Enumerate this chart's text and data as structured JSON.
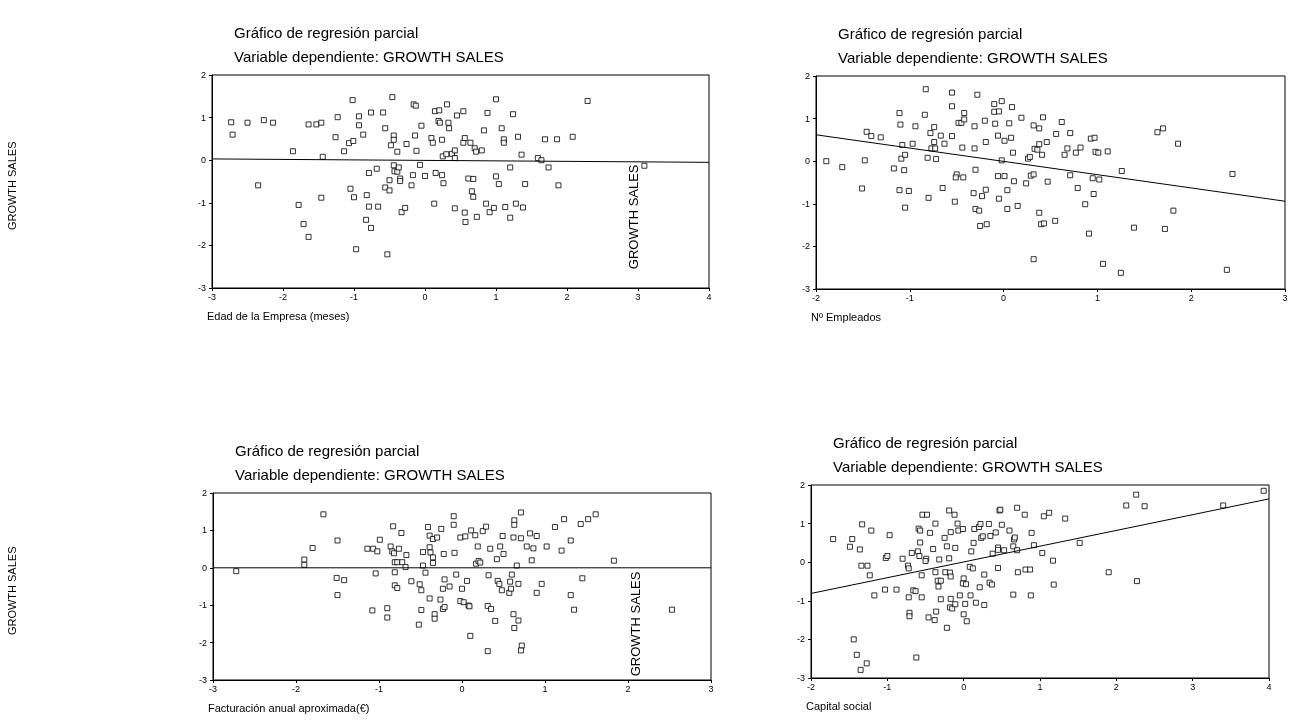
{
  "chart_data": [
    {
      "type": "scatter",
      "title": "Gráfico de regresión parcial",
      "subtitle": "Variable dependiente: GROWTH SALES",
      "xlabel": "Edad de la Empresa (meses)",
      "ylabel": "GROWTH SALES",
      "annotations": [
        "GROWTH SALES"
      ],
      "xlim": [
        -3,
        4
      ],
      "ylim": [
        -3,
        2
      ],
      "xticks": [
        -3,
        -2,
        -1,
        0,
        1,
        2,
        3,
        4
      ],
      "yticks": [
        -3,
        -2,
        -1,
        0,
        1,
        2
      ],
      "series": [
        {
          "marker": "square",
          "color": "#000000",
          "x": [
            -2.73,
            -2.71,
            -2.5,
            -2.27,
            -2.14,
            -2.35,
            -1.86,
            -1.78,
            -1.71,
            -1.64,
            -1.64,
            -1.53,
            -1.46,
            -1.44,
            -1.46,
            -1.26,
            -1.23,
            -1.14,
            -1.07,
            -1.05,
            -1.02,
            -1.01,
            -1.0,
            -0.97,
            -0.93,
            -0.93,
            -0.87,
            -0.83,
            -0.82,
            -0.79,
            -0.79,
            -0.76,
            -0.76,
            -0.68,
            -0.66,
            -0.59,
            -0.56,
            -0.56,
            -0.53,
            -0.5,
            -0.5,
            -0.48,
            -0.46,
            -0.44,
            -0.44,
            -0.44,
            -0.43,
            -0.39,
            -0.39,
            -0.37,
            -0.35,
            -0.35,
            -0.33,
            -0.28,
            -0.26,
            -0.19,
            -0.17,
            -0.16,
            -0.13,
            -0.14,
            -0.12,
            -0.07,
            -0.05,
            0.0,
            0.09,
            0.11,
            0.13,
            0.14,
            0.15,
            0.2,
            0.19,
            0.21,
            0.24,
            0.24,
            0.25,
            0.26,
            0.3,
            0.31,
            0.33,
            0.34,
            0.38,
            0.42,
            0.42,
            0.42,
            0.45,
            0.54,
            0.54,
            0.56,
            0.57,
            0.56,
            0.61,
            0.64,
            0.66,
            0.68,
            0.68,
            0.7,
            0.72,
            0.73,
            0.8,
            0.83,
            0.86,
            0.88,
            0.91,
            0.97,
            1.0,
            1.0,
            1.04,
            1.08,
            1.11,
            1.11,
            1.13,
            1.2,
            1.2,
            1.24,
            1.28,
            1.31,
            1.36,
            1.38,
            1.41,
            1.59,
            1.64,
            1.69,
            1.74,
            1.86,
            1.88,
            2.08,
            2.29,
            3.09
          ],
          "values": [
            0.89,
            0.6,
            0.88,
            0.94,
            0.88,
            -0.59,
            0.21,
            -1.05,
            -1.5,
            -1.8,
            0.84,
            0.84,
            0.88,
            0.08,
            -0.88,
            0.54,
            1.01,
            0.21,
            0.4,
            -0.67,
            1.41,
            0.45,
            -0.87,
            -2.09,
            1.03,
            0.82,
            0.6,
            -1.4,
            -0.82,
            -0.3,
            -1.09,
            -1.59,
            1.12,
            -0.2,
            -1.09,
            1.12,
            -0.64,
            0.75,
            -2.21,
            -0.71,
            -0.47,
            0.35,
            1.48,
            0.58,
            0.48,
            -0.12,
            -0.26,
            0.2,
            -0.27,
            -0.17,
            -0.43,
            -0.49,
            -1.22,
            -1.12,
            0.38,
            -0.59,
            -0.35,
            1.31,
            1.28,
            0.58,
            0.22,
            -0.11,
            0.81,
            -0.37,
            0.52,
            0.41,
            -1.02,
            1.15,
            -0.3,
            1.17,
            0.92,
            0.88,
            -0.35,
            0.48,
            0.09,
            -0.54,
            0.14,
            1.31,
            0.88,
            0.75,
            0.15,
            -1.13,
            0.23,
            0.05,
            1.05,
            1.15,
            0.41,
            -1.23,
            -1.45,
            0.52,
            -0.43,
            0.41,
            -0.73,
            -0.86,
            -0.44,
            0.28,
            0.2,
            -1.33,
            0.23,
            0.7,
            -1.02,
            1.11,
            -1.22,
            -1.12,
            1.43,
            -0.38,
            -0.56,
            0.75,
            0.49,
            0.41,
            -1.1,
            -0.17,
            -1.35,
            1.08,
            -1.02,
            0.55,
            0.13,
            -1.11,
            -0.56,
            0.05,
            0.0,
            0.49,
            -0.17,
            0.49,
            -0.59,
            0.55,
            1.39,
            -0.13
          ]
        },
        {
          "type": "line",
          "color": "#000000",
          "x": [
            -3,
            4
          ],
          "values": [
            0.03,
            -0.05
          ]
        }
      ]
    },
    {
      "type": "scatter",
      "title": "Gráfico de regresión parcial",
      "subtitle": "Variable dependiente: GROWTH SALES",
      "xlabel": "Nº Empleados",
      "xlim": [
        -2,
        3
      ],
      "ylim": [
        -3,
        2
      ],
      "xticks": [
        -2,
        -1,
        0,
        1,
        2,
        3
      ],
      "yticks": [
        -3,
        -2,
        -1,
        0,
        1,
        2
      ],
      "series": [
        {
          "marker": "square",
          "color": "#000000",
          "x": [
            -1.89,
            -1.72,
            -1.51,
            -1.48,
            -1.46,
            -1.41,
            -1.31,
            -1.17,
            -1.11,
            -1.1,
            -1.08,
            -1.11,
            -1.09,
            -1.06,
            -1.05,
            -1.05,
            -1.01,
            -0.97,
            -0.94,
            -0.84,
            -0.83,
            -0.81,
            -0.8,
            -0.78,
            -0.77,
            -0.74,
            -0.74,
            -0.73,
            -0.72,
            -0.67,
            -0.65,
            -0.63,
            -0.55,
            -0.55,
            -0.55,
            -0.52,
            -0.5,
            -0.51,
            -0.48,
            -0.45,
            -0.44,
            -0.43,
            -0.42,
            -0.42,
            -0.32,
            -0.31,
            -0.31,
            -0.3,
            -0.3,
            -0.28,
            -0.26,
            -0.25,
            -0.23,
            -0.2,
            -0.19,
            -0.19,
            -0.18,
            -0.1,
            -0.1,
            -0.09,
            -0.06,
            -0.06,
            -0.05,
            -0.05,
            -0.02,
            -0.02,
            0.01,
            0.01,
            0.04,
            0.04,
            0.06,
            0.08,
            0.09,
            0.1,
            0.11,
            0.15,
            0.19,
            0.24,
            0.26,
            0.28,
            0.29,
            0.32,
            0.32,
            0.32,
            0.33,
            0.36,
            0.38,
            0.38,
            0.38,
            0.4,
            0.41,
            0.42,
            0.43,
            0.46,
            0.47,
            0.55,
            0.56,
            0.62,
            0.65,
            0.68,
            0.71,
            0.71,
            0.77,
            0.79,
            0.82,
            0.87,
            0.91,
            0.93,
            0.95,
            0.96,
            0.97,
            0.98,
            1.02,
            1.01,
            1.06,
            1.11,
            1.26,
            1.25,
            1.39,
            1.64,
            1.7,
            1.72,
            1.81,
            1.86,
            2.38,
            2.44
          ],
          "values": [
            0.0,
            -0.14,
            -0.64,
            0.02,
            0.69,
            0.59,
            0.56,
            -0.17,
            1.13,
            0.86,
            0.38,
            -0.68,
            0.06,
            -0.21,
            0.15,
            -1.09,
            -0.7,
            0.41,
            0.82,
            1.09,
            1.69,
            0.08,
            -0.86,
            0.66,
            0.3,
            0.45,
            0.8,
            0.3,
            0.05,
            0.6,
            -0.63,
            0.41,
            1.61,
            1.29,
            0.59,
            -0.95,
            -0.31,
            -0.38,
            0.9,
            0.9,
            0.32,
            -0.38,
            1.13,
            0.98,
            -0.75,
            0.82,
            0.3,
            -0.2,
            -1.12,
            1.56,
            -1.16,
            -1.52,
            -0.82,
            0.95,
            -0.67,
            0.45,
            -1.48,
            1.34,
            1.16,
            0.88,
            0.6,
            -0.35,
            -0.88,
            1.17,
            1.41,
            0.02,
            -0.35,
            0.48,
            -0.68,
            -1.12,
            0.89,
            0.55,
            1.27,
            0.2,
            -0.47,
            -1.05,
            1.02,
            -0.52,
            0.06,
            0.1,
            -0.34,
            -0.31,
            0.84,
            -2.3,
            0.29,
            0.27,
            0.77,
            0.4,
            -1.21,
            -1.48,
            0.15,
            1.03,
            -1.46,
            0.45,
            -0.48,
            -1.4,
            0.64,
            0.92,
            0.15,
            0.3,
            -0.33,
            0.66,
            0.2,
            -0.63,
            0.32,
            -1.01,
            -1.7,
            0.53,
            -0.4,
            -0.77,
            0.55,
            0.22,
            -0.43,
            0.2,
            -2.41,
            0.23,
            -0.23,
            -2.62,
            -1.56,
            0.68,
            0.77,
            -1.59,
            -1.16,
            0.41,
            -2.55,
            -0.3
          ]
        },
        {
          "type": "line",
          "color": "#000000",
          "x": [
            -2,
            3
          ],
          "values": [
            0.62,
            -0.94
          ]
        }
      ]
    },
    {
      "type": "scatter",
      "title": "Gráfico de regresión parcial",
      "subtitle": "Variable dependiente: GROWTH SALES",
      "xlabel": "Facturación anual aproximada(€)",
      "ylabel": "GROWTH SALES",
      "annotations": [
        "GROWTH SALES"
      ],
      "xlim": [
        -3,
        3
      ],
      "ylim": [
        -3,
        2
      ],
      "xticks": [
        -3,
        -2,
        -1,
        0,
        1,
        2,
        3
      ],
      "yticks": [
        -3,
        -2,
        -1,
        0,
        1,
        2
      ],
      "series": [
        {
          "marker": "square",
          "color": "#000000",
          "x": [
            -2.72,
            -1.9,
            -1.9,
            -1.8,
            -1.67,
            -1.51,
            -1.5,
            -1.5,
            -1.42,
            -1.14,
            -1.07,
            -1.04,
            -1.02,
            -1.08,
            -0.99,
            -0.9,
            -0.9,
            -0.86,
            -0.83,
            -0.84,
            -0.82,
            -0.81,
            -0.81,
            -0.81,
            -0.78,
            -0.78,
            -0.76,
            -0.73,
            -0.72,
            -0.68,
            -0.67,
            -0.61,
            -0.52,
            -0.51,
            -0.49,
            -0.49,
            -0.47,
            -0.47,
            -0.44,
            -0.41,
            -0.39,
            -0.39,
            -0.39,
            -0.38,
            -0.35,
            -0.35,
            -0.35,
            -0.33,
            -0.33,
            -0.3,
            -0.26,
            -0.25,
            -0.23,
            -0.22,
            -0.21,
            -0.21,
            -0.23,
            -0.15,
            -0.1,
            -0.1,
            -0.09,
            -0.07,
            -0.02,
            -0.02,
            0.0,
            0.02,
            0.04,
            0.06,
            0.08,
            0.09,
            0.1,
            0.11,
            0.16,
            0.17,
            0.19,
            0.2,
            0.22,
            0.25,
            0.29,
            0.31,
            0.31,
            0.32,
            0.34,
            0.35,
            0.4,
            0.42,
            0.43,
            0.45,
            0.46,
            0.48,
            0.49,
            0.5,
            0.57,
            0.58,
            0.59,
            0.6,
            0.62,
            0.63,
            0.63,
            0.62,
            0.63,
            0.66,
            0.68,
            0.68,
            0.71,
            0.71,
            0.72,
            0.71,
            0.78,
            0.82,
            0.86,
            0.84,
            0.9,
            0.9,
            0.96,
            1.02,
            1.12,
            1.2,
            1.23,
            1.31,
            1.31,
            1.35,
            1.43,
            1.45,
            1.52,
            1.61,
            1.83,
            2.53
          ],
          "values": [
            -0.09,
            0.22,
            0.08,
            0.53,
            1.43,
            -0.27,
            0.73,
            -0.73,
            -0.33,
            0.51,
            0.51,
            -0.15,
            0.44,
            -1.14,
            0.75,
            -1.08,
            -1.33,
            0.57,
            1.11,
            0.44,
            0.39,
            -0.12,
            0.15,
            -0.47,
            0.15,
            -0.54,
            0.51,
            0.93,
            0.15,
            0.02,
            0.34,
            -0.36,
            -1.52,
            -0.44,
            -0.6,
            -1.13,
            0.06,
            0.42,
            -0.13,
            1.09,
            -0.82,
            0.86,
            0.55,
            0.41,
            0.13,
            0.28,
            0.77,
            -1.24,
            -1.36,
            0.81,
            -0.85,
            1.04,
            -1.1,
            0.37,
            -1.05,
            -0.31,
            -0.56,
            -0.5,
            1.38,
            1.15,
            0.4,
            -0.18,
            -0.89,
            0.81,
            -0.56,
            -0.92,
            0.84,
            -0.35,
            -1.01,
            -1.03,
            -1.82,
            1.0,
            0.87,
            0.11,
            0.57,
            0.18,
            0.14,
            0.98,
            1.1,
            -1.02,
            -2.23,
            -0.2,
            0.51,
            -1.1,
            -1.42,
            0.23,
            -0.35,
            -0.43,
            0.57,
            -0.6,
            0.85,
            0.37,
            -0.67,
            -0.37,
            -0.56,
            -0.18,
            0.81,
            1.27,
            1.15,
            -1.24,
            -1.61,
            0.06,
            -0.43,
            -1.41,
            1.48,
            0.79,
            -2.08,
            -2.21,
            0.57,
            0.92,
            0.52,
            0.2,
            -0.67,
            0.85,
            -0.43,
            0.57,
            1.09,
            0.46,
            1.3,
            0.73,
            -0.73,
            -1.12,
            1.17,
            -0.28,
            1.3,
            1.43,
            0.19,
            -1.12
          ]
        },
        {
          "type": "line",
          "color": "#000000",
          "x": [
            -3,
            3
          ],
          "values": [
            0,
            0
          ]
        }
      ]
    },
    {
      "type": "scatter",
      "title": "Gráfico de regresión parcial",
      "subtitle": "Variable dependiente: GROWTH SALES",
      "xlabel": "Capital social",
      "xlim": [
        -2,
        4
      ],
      "ylim": [
        -3,
        2
      ],
      "xticks": [
        -2,
        -1,
        0,
        1,
        2,
        3,
        4
      ],
      "yticks": [
        -3,
        -2,
        -1,
        0,
        1,
        2
      ],
      "series": [
        {
          "marker": "square",
          "color": "#000000",
          "x": [
            -1.71,
            -1.49,
            -1.46,
            -1.44,
            -1.4,
            -1.36,
            -1.35,
            -1.33,
            -1.34,
            -1.27,
            -1.26,
            -1.23,
            -1.21,
            -1.17,
            -1.03,
            -1.02,
            -1.0,
            -0.97,
            -0.88,
            -0.8,
            -0.73,
            -0.72,
            -0.72,
            -0.71,
            -0.71,
            -0.68,
            -0.66,
            -0.63,
            -0.62,
            -0.6,
            -0.59,
            -0.58,
            -0.57,
            -0.57,
            -0.55,
            -0.55,
            -0.54,
            -0.48,
            -0.49,
            -0.5,
            -0.46,
            -0.44,
            -0.4,
            -0.38,
            -0.37,
            -0.37,
            -0.36,
            -0.34,
            -0.33,
            -0.32,
            -0.3,
            -0.3,
            -0.25,
            -0.24,
            -0.22,
            -0.22,
            -0.19,
            -0.19,
            -0.18,
            -0.17,
            -0.17,
            -0.17,
            -0.18,
            -0.15,
            -0.12,
            -0.11,
            -0.11,
            -0.08,
            -0.07,
            -0.05,
            -0.01,
            0.0,
            -0.01,
            0.02,
            0.0,
            0.03,
            0.04,
            0.08,
            0.09,
            0.1,
            0.12,
            0.13,
            0.14,
            0.16,
            0.2,
            0.21,
            0.22,
            0.23,
            0.25,
            0.27,
            0.27,
            0.33,
            0.34,
            0.35,
            0.37,
            0.38,
            0.42,
            0.45,
            0.45,
            0.45,
            0.47,
            0.48,
            0.5,
            0.53,
            0.6,
            0.65,
            0.65,
            0.66,
            0.67,
            0.7,
            0.7,
            0.71,
            0.8,
            0.81,
            0.87,
            0.88,
            0.89,
            0.92,
            1.03,
            1.05,
            1.12,
            1.17,
            1.18,
            1.33,
            1.52,
            1.9,
            2.13,
            2.26,
            2.27,
            2.37,
            3.4,
            3.93
          ],
          "values": [
            0.6,
            0.4,
            0.6,
            -2.0,
            -2.4,
            0.33,
            -2.79,
            0.98,
            -0.09,
            -2.62,
            -0.09,
            -0.34,
            0.82,
            -0.86,
            -0.71,
            0.11,
            0.16,
            0.7,
            -0.71,
            0.09,
            -0.09,
            -0.16,
            -0.91,
            -1.31,
            -1.4,
            0.24,
            -0.73,
            -0.75,
            -2.47,
            0.28,
            0.87,
            0.16,
            0.82,
            0.51,
            -0.91,
            -0.34,
            1.23,
            1.23,
            0.09,
            0.03,
            -1.43,
            0.76,
            0.34,
            -1.5,
            1.0,
            -0.26,
            -1.28,
            -0.48,
            -0.63,
            0.07,
            -0.48,
            -0.96,
            0.63,
            -0.26,
            -1.7,
            0.41,
            1.34,
            0.1,
            -0.27,
            -0.37,
            -0.95,
            0.78,
            -1.17,
            -1.2,
            1.23,
            -1.09,
            0.37,
            1.0,
            0.82,
            -0.86,
            0.86,
            -0.42,
            -0.55,
            -1.08,
            -1.35,
            -0.57,
            -1.53,
            -0.12,
            -0.86,
            0.28,
            -0.16,
            0.5,
            0.86,
            -1.05,
            0.91,
            -0.65,
            0.99,
            0.63,
            0.67,
            -0.32,
            -1.11,
            0.99,
            -0.53,
            0.68,
            -0.58,
            0.22,
            0.77,
            0.38,
            0.32,
            -0.15,
            1.34,
            1.36,
            0.97,
            0.31,
            0.82,
            0.41,
            -0.84,
            0.59,
            0.64,
            0.31,
            1.41,
            -0.26,
            1.23,
            -0.19,
            -0.19,
            -0.86,
            0.76,
            0.44,
            0.24,
            1.19,
            1.28,
            0.04,
            -0.58,
            1.13,
            0.5,
            -0.26,
            1.47,
            1.75,
            -0.49,
            1.45,
            1.47,
            1.85
          ]
        },
        {
          "type": "line",
          "color": "#000000",
          "x": [
            -2,
            4
          ],
          "values": [
            -0.81,
            1.64
          ]
        }
      ]
    }
  ]
}
